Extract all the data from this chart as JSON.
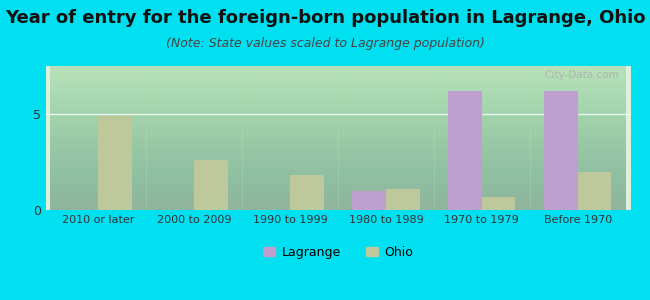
{
  "title": "Year of entry for the foreign-born population in Lagrange, Ohio",
  "subtitle": "(Note: State values scaled to Lagrange population)",
  "categories": [
    "2010 or later",
    "2000 to 2009",
    "1990 to 1999",
    "1980 to 1989",
    "1970 to 1979",
    "Before 1970"
  ],
  "lagrange_values": [
    0,
    0,
    0,
    1.0,
    6.2,
    6.2
  ],
  "ohio_values": [
    4.9,
    2.6,
    1.8,
    1.1,
    0.7,
    2.0
  ],
  "lagrange_color": "#bf9fce",
  "ohio_color": "#bdc99a",
  "background_color": "#00e0f0",
  "ylim": [
    0,
    7.5
  ],
  "yticks": [
    0,
    5
  ],
  "title_fontsize": 13,
  "subtitle_fontsize": 9,
  "bar_width": 0.35,
  "tick_fontsize": 8,
  "legend_lagrange": "Lagrange",
  "legend_ohio": "Ohio",
  "watermark": "City-Data.com",
  "plot_bg_color_top": "#e8f5e9",
  "plot_bg_color_bottom": "#c8ead0"
}
